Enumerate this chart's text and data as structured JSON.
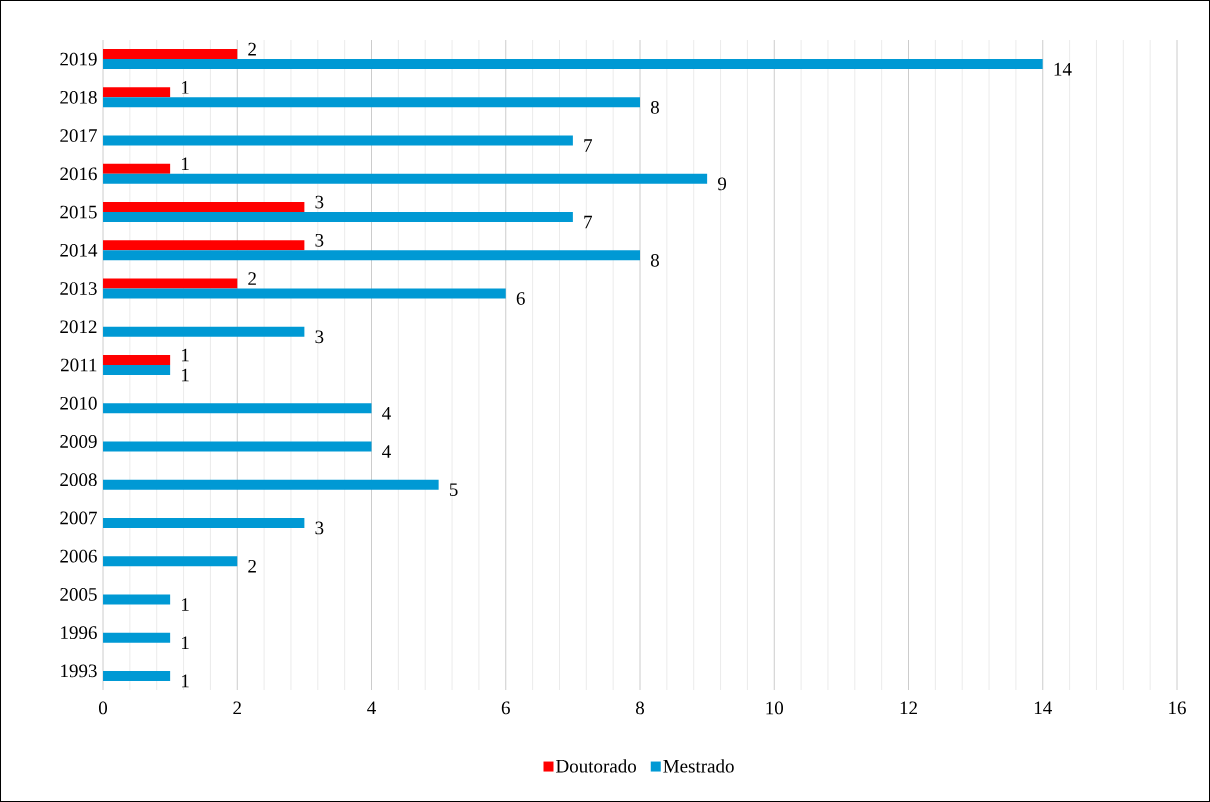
{
  "chart_data": {
    "type": "bar",
    "orientation": "horizontal",
    "categories": [
      "2019",
      "2018",
      "2017",
      "2016",
      "2015",
      "2014",
      "2013",
      "2012",
      "2011",
      "2010",
      "2009",
      "2008",
      "2007",
      "2006",
      "2005",
      "1996",
      "1993"
    ],
    "series": [
      {
        "name": "Doutorado",
        "color": "#ff0000",
        "values": [
          2,
          1,
          null,
          1,
          3,
          3,
          2,
          null,
          1,
          null,
          null,
          null,
          null,
          null,
          null,
          null,
          null
        ]
      },
      {
        "name": "Mestrado",
        "color": "#0099d4",
        "values": [
          14,
          8,
          7,
          9,
          7,
          8,
          6,
          3,
          1,
          4,
          4,
          5,
          3,
          2,
          1,
          1,
          1
        ]
      }
    ],
    "xlim": [
      0,
      16
    ],
    "xticks": [
      0,
      2,
      4,
      6,
      8,
      10,
      12,
      14,
      16
    ],
    "grid": "x",
    "legend": "bottom",
    "data_labels": true
  }
}
